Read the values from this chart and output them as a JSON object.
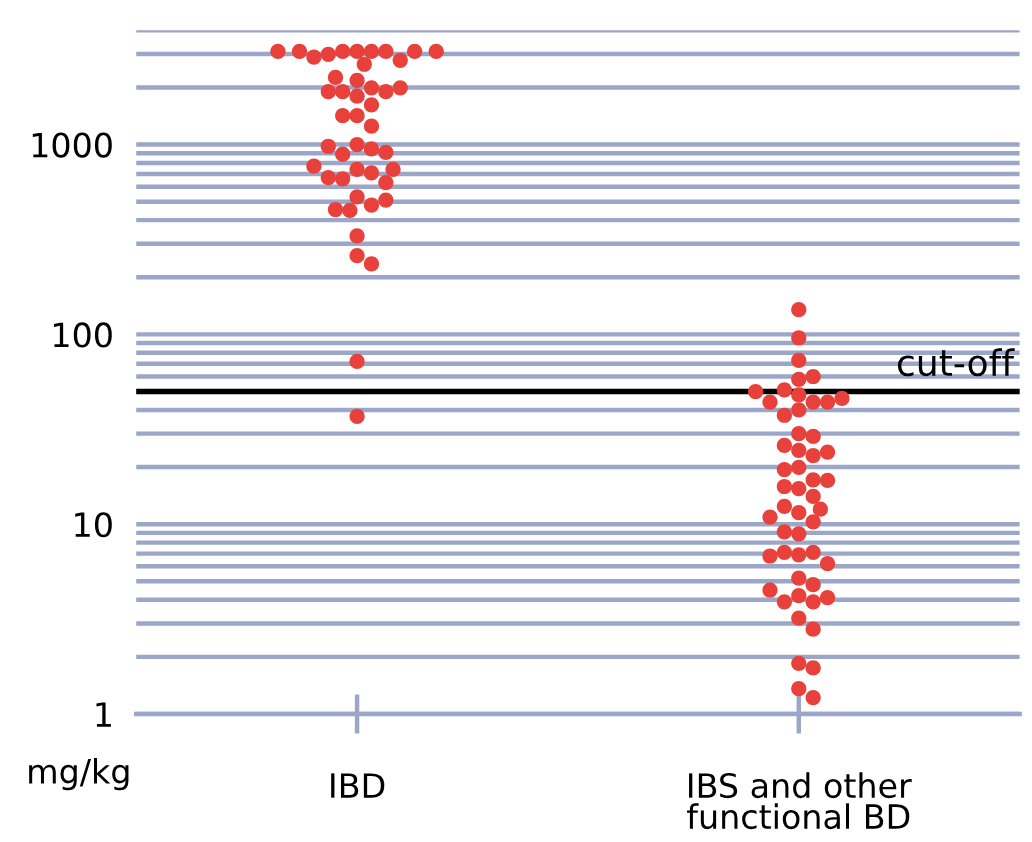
{
  "chart_data": {
    "type": "scatter",
    "ylabel": "mg/kg",
    "log": "y",
    "ylim": [
      1,
      4000
    ],
    "yticks": [
      1,
      {
        "value": 2,
        "label": null
      },
      {
        "value": 3,
        "label": null
      },
      {
        "value": 4,
        "label": null
      },
      {
        "value": 5,
        "label": null
      },
      {
        "value": 6,
        "label": null
      },
      {
        "value": 7,
        "label": null
      },
      {
        "value": 8,
        "label": null
      },
      {
        "value": 9,
        "label": null
      },
      10,
      {
        "value": 20,
        "label": null
      },
      {
        "value": 30,
        "label": null
      },
      {
        "value": 40,
        "label": null
      },
      {
        "value": 50,
        "label": null
      },
      {
        "value": 60,
        "label": null
      },
      {
        "value": 70,
        "label": null
      },
      {
        "value": 80,
        "label": null
      },
      {
        "value": 90,
        "label": null
      },
      100,
      {
        "value": 200,
        "label": null
      },
      {
        "value": 300,
        "label": null
      },
      {
        "value": 400,
        "label": null
      },
      {
        "value": 500,
        "label": null
      },
      {
        "value": 600,
        "label": null
      },
      {
        "value": 700,
        "label": null
      },
      {
        "value": 800,
        "label": null
      },
      {
        "value": 900,
        "label": null
      },
      1000,
      {
        "value": 2000,
        "label": null
      },
      {
        "value": 3000,
        "label": null
      },
      {
        "value": 4000,
        "label": null
      }
    ],
    "categories": [
      "IBD",
      "IBS and other\nfunctional BD"
    ],
    "grid": "y",
    "marker": "circle",
    "series": [
      {
        "color": "#e8403a",
        "x": [
          "IBD",
          "IBD",
          "IBD",
          "IBD",
          "IBD",
          "IBD",
          "IBD",
          "IBD",
          "IBD",
          "IBD",
          "IBD",
          "IBD",
          "IBD",
          "IBD",
          "IBD",
          "IBD",
          "IBD",
          "IBD",
          "IBD",
          "IBD",
          "IBD",
          "IBD",
          "IBD",
          "IBD",
          "IBD",
          "IBD",
          "IBD",
          "IBD",
          "IBD",
          "IBD",
          "IBD",
          "IBD",
          "IBD",
          "IBD",
          "IBD",
          "IBD",
          "IBD",
          "IBD",
          "IBD",
          "IBD",
          "IBD",
          "IBD",
          "IBD",
          "IBD",
          "IBD",
          "IBD"
        ],
        "values": [
          3100,
          3100,
          3100,
          3100,
          2990,
          2780,
          2650,
          2890,
          3100,
          3100,
          3100,
          3100,
          2180,
          1990,
          1900,
          1800,
          1900,
          1900,
          1990,
          2260,
          1620,
          1420,
          1250,
          1420,
          1000,
          950,
          890,
          910,
          980,
          740,
          710,
          660,
          630,
          670,
          740,
          770,
          530,
          480,
          450,
          455,
          510,
          330,
          260,
          235,
          72,
          37
        ]
      },
      {
        "color": "#e8403a",
        "x": [
          "IBS and other\nfunctional BD",
          "IBS and other\nfunctional BD",
          "IBS and other\nfunctional BD",
          "IBS and other\nfunctional BD",
          "IBS and other\nfunctional BD",
          "IBS and other\nfunctional BD",
          "IBS and other\nfunctional BD",
          "IBS and other\nfunctional BD",
          "IBS and other\nfunctional BD",
          "IBS and other\nfunctional BD",
          "IBS and other\nfunctional BD",
          "IBS and other\nfunctional BD",
          "IBS and other\nfunctional BD",
          "IBS and other\nfunctional BD",
          "IBS and other\nfunctional BD",
          "IBS and other\nfunctional BD",
          "IBS and other\nfunctional BD",
          "IBS and other\nfunctional BD",
          "IBS and other\nfunctional BD",
          "IBS and other\nfunctional BD",
          "IBS and other\nfunctional BD",
          "IBS and other\nfunctional BD",
          "IBS and other\nfunctional BD",
          "IBS and other\nfunctional BD",
          "IBS and other\nfunctional BD",
          "IBS and other\nfunctional BD",
          "IBS and other\nfunctional BD",
          "IBS and other\nfunctional BD",
          "IBS and other\nfunctional BD",
          "IBS and other\nfunctional BD",
          "IBS and other\nfunctional BD",
          "IBS and other\nfunctional BD",
          "IBS and other\nfunctional BD",
          "IBS and other\nfunctional BD",
          "IBS and other\nfunctional BD",
          "IBS and other\nfunctional BD",
          "IBS and other\nfunctional BD",
          "IBS and other\nfunctional BD",
          "IBS and other\nfunctional BD",
          "IBS and other\nfunctional BD",
          "IBS and other\nfunctional BD",
          "IBS and other\nfunctional BD",
          "IBS and other\nfunctional BD",
          "IBS and other\nfunctional BD",
          "IBS and other\nfunctional BD",
          "IBS and other\nfunctional BD",
          "IBS and other\nfunctional BD",
          "IBS and other\nfunctional BD",
          "IBS and other\nfunctional BD",
          "IBS and other\nfunctional BD",
          "IBS and other\nfunctional BD",
          "IBS and other\nfunctional BD"
        ],
        "values": [
          135,
          96,
          73,
          58,
          60,
          51,
          48,
          44,
          44,
          40,
          37.5,
          44,
          46,
          50,
          30,
          29,
          26,
          24.5,
          23,
          24,
          19.9,
          19.4,
          15.4,
          17.1,
          15.8,
          17,
          14,
          11.5,
          12.4,
          12,
          10.9,
          10.3,
          8.9,
          9.1,
          6.9,
          7.1,
          7.1,
          6.2,
          6.8,
          5.2,
          4.8,
          4.2,
          3.9,
          3.9,
          4.1,
          4.5,
          3.2,
          2.8,
          1.85,
          1.75,
          1.36,
          1.22
        ]
      }
    ],
    "ref_lines": [
      {
        "axis": "y",
        "value": 50,
        "label": "cut-off",
        "color": "#000000"
      }
    ]
  }
}
